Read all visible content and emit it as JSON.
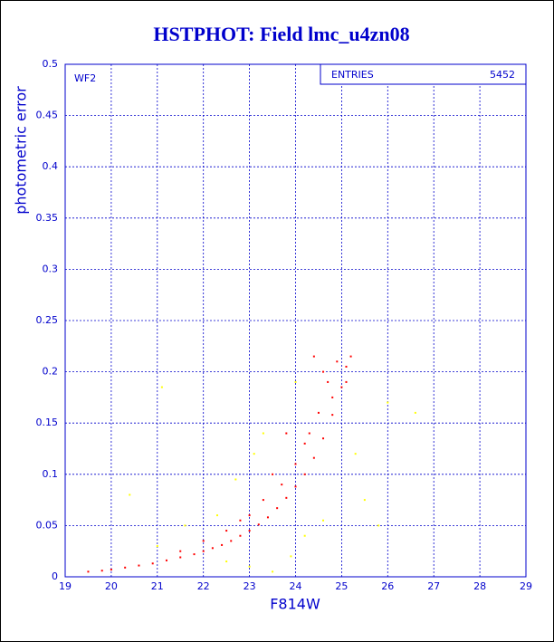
{
  "chart_data": {
    "type": "scatter",
    "title": "HSTPHOT: Field lmc_u4zn08",
    "x_label": "F814W",
    "y_label": "photometric error",
    "annotation": "WF2",
    "stats_label": "ENTRIES",
    "stats_value": 5452,
    "xlim": [
      19,
      29
    ],
    "xticks": [
      19,
      20,
      21,
      22,
      23,
      24,
      25,
      26,
      27,
      28,
      29
    ],
    "ylim": [
      0,
      0.5
    ],
    "yticks": [
      0,
      0.05,
      0.1,
      0.15,
      0.2,
      0.25,
      0.3,
      0.35,
      0.4,
      0.45,
      0.5
    ],
    "grid": true,
    "series": [
      {
        "color": "#ffff00",
        "x": [
          20.4,
          21.1,
          21.6,
          22.3,
          22.7,
          23.1,
          23.5,
          23.9,
          24.2,
          24.6,
          25.3,
          26.0,
          26.6,
          25.8,
          23.0,
          22.5,
          24.0,
          23.3,
          21.0,
          25.5
        ],
        "values": [
          0.08,
          0.185,
          0.05,
          0.06,
          0.095,
          0.12,
          0.005,
          0.02,
          0.04,
          0.055,
          0.12,
          0.17,
          0.16,
          0.05,
          0.01,
          0.015,
          0.19,
          0.14,
          0.03,
          0.075
        ]
      },
      {
        "color": "#ff0000",
        "x": [
          19.5,
          19.8,
          20.0,
          20.3,
          20.6,
          20.9,
          21.2,
          21.5,
          21.8,
          22.0,
          22.2,
          22.4,
          22.6,
          22.8,
          23.0,
          23.2,
          23.4,
          23.6,
          23.8,
          24.0,
          24.2,
          24.4,
          24.6,
          24.8,
          25.0,
          25.1,
          22.5,
          23.0,
          23.3,
          23.7,
          24.0,
          24.3,
          24.5,
          24.7,
          24.9,
          25.2,
          24.6,
          21.5,
          22.0,
          23.5,
          24.2,
          24.8,
          25.1,
          24.4,
          23.8,
          22.8
        ],
        "values": [
          0.005,
          0.006,
          0.007,
          0.009,
          0.011,
          0.013,
          0.016,
          0.019,
          0.022,
          0.025,
          0.028,
          0.031,
          0.035,
          0.04,
          0.045,
          0.051,
          0.058,
          0.067,
          0.077,
          0.088,
          0.1,
          0.116,
          0.135,
          0.158,
          0.185,
          0.205,
          0.045,
          0.06,
          0.075,
          0.09,
          0.11,
          0.14,
          0.16,
          0.19,
          0.21,
          0.215,
          0.2,
          0.025,
          0.035,
          0.1,
          0.13,
          0.175,
          0.19,
          0.215,
          0.14,
          0.055
        ]
      }
    ]
  }
}
